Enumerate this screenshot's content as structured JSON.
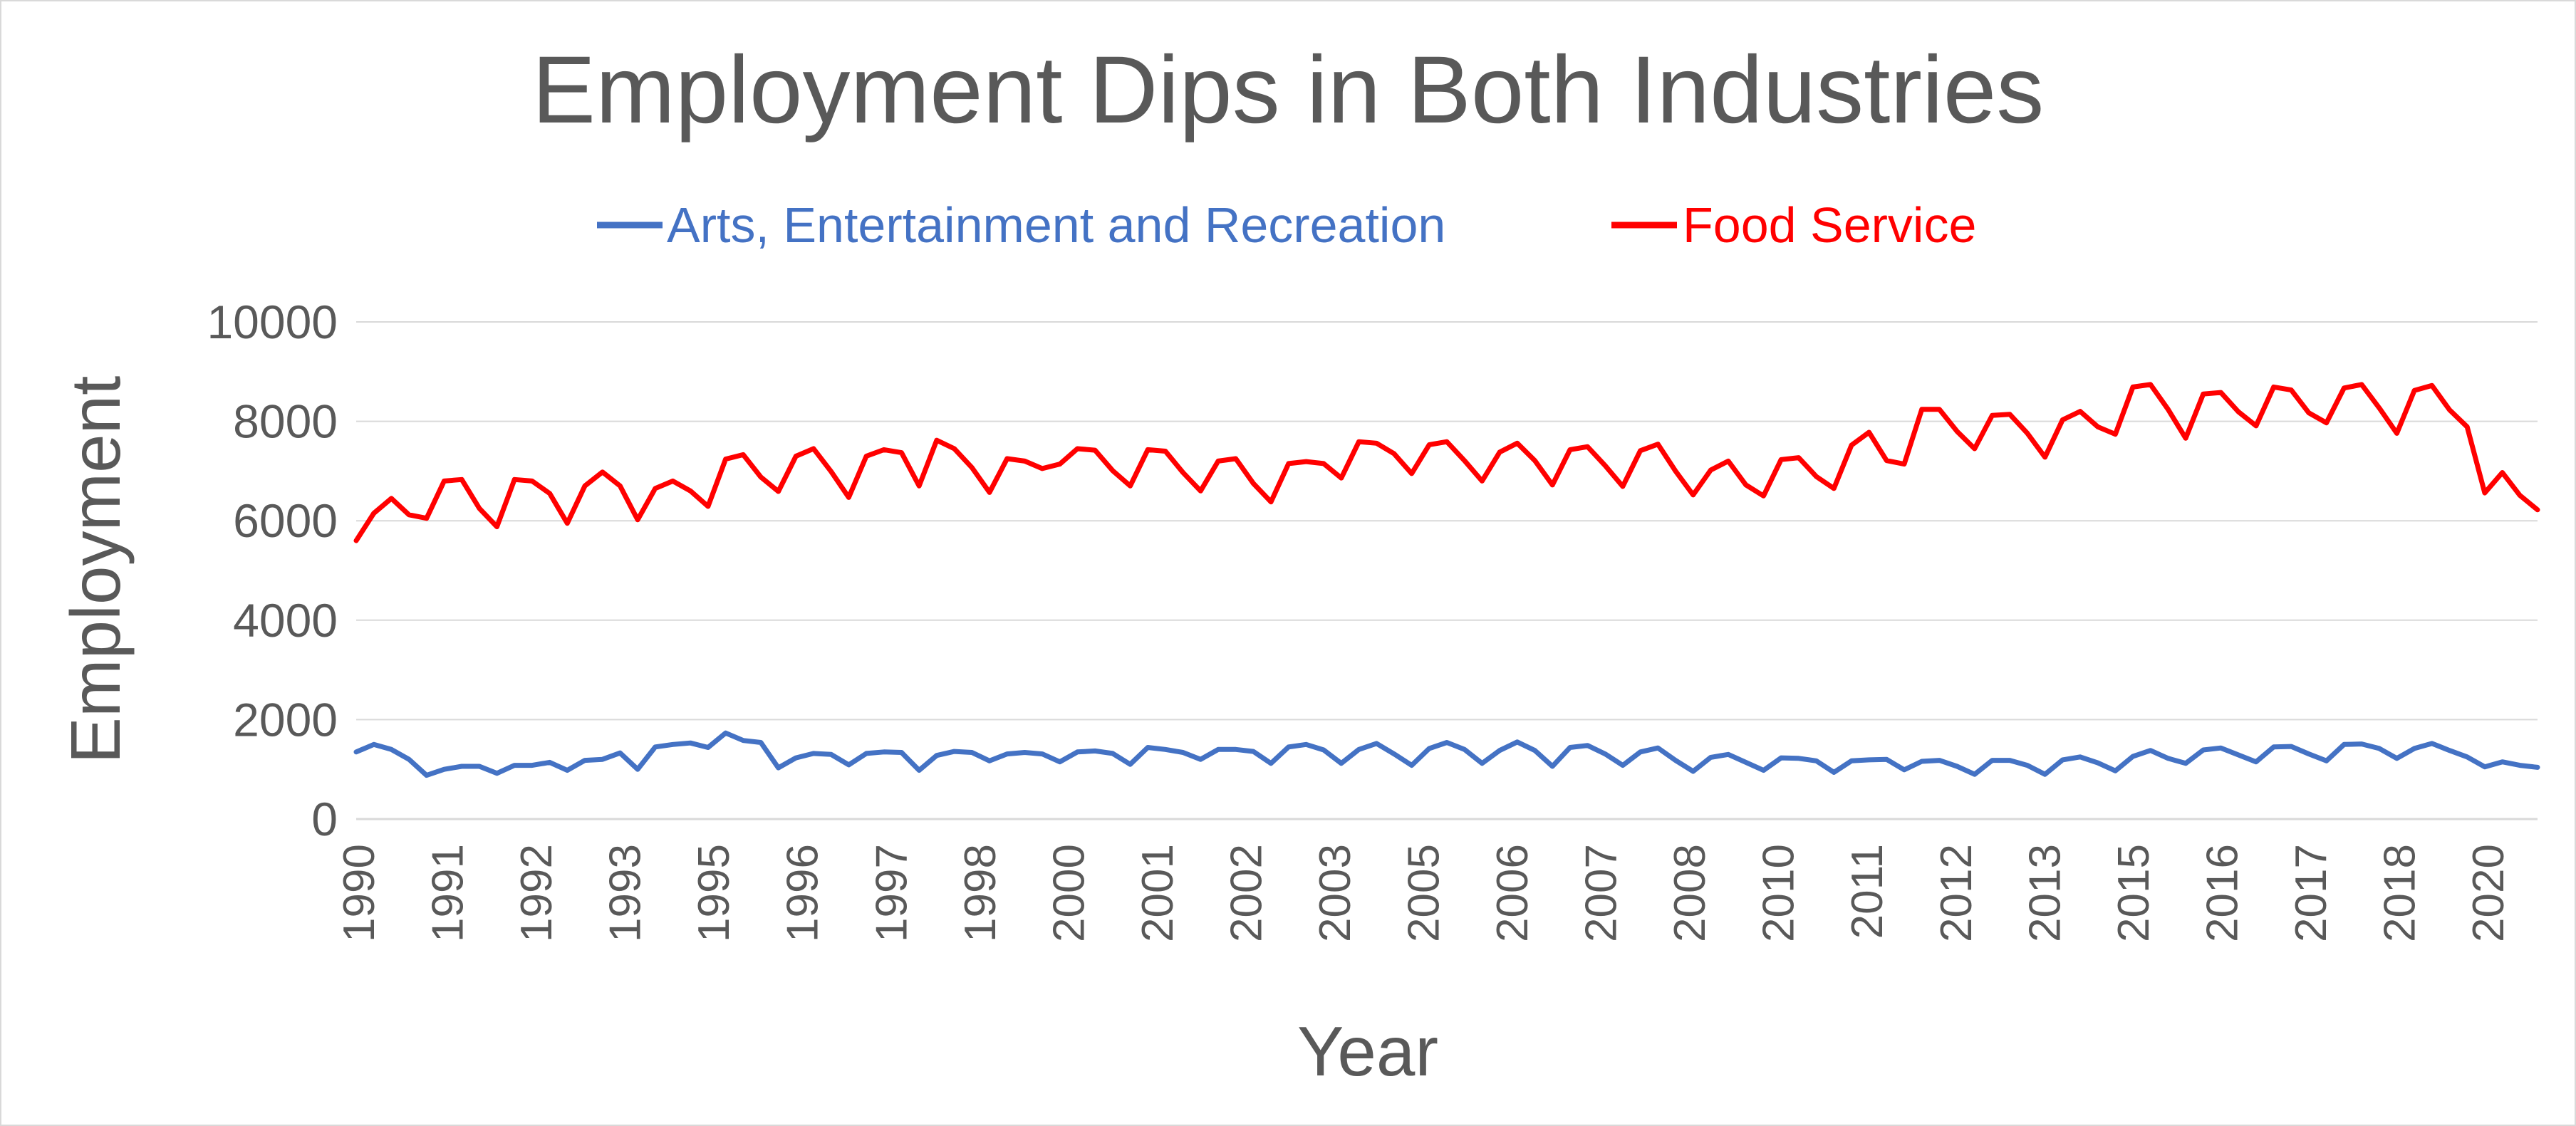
{
  "chart_data": {
    "type": "line",
    "title": "Employment Dips in Both Industries",
    "xlabel": "Year",
    "ylabel": "Employment",
    "ylim": [
      0,
      10000
    ],
    "y_ticks": [
      "0",
      "2000",
      "4000",
      "6000",
      "8000",
      "10000"
    ],
    "x_tick_labels": [
      "1990",
      "1991",
      "1992",
      "1993",
      "1995",
      "1996",
      "1997",
      "1998",
      "2000",
      "2001",
      "2002",
      "2003",
      "2005",
      "2006",
      "2007",
      "2008",
      "2010",
      "2011",
      "2012",
      "2013",
      "2015",
      "2016",
      "2017",
      "2018",
      "2020"
    ],
    "grid": true,
    "legend_position": "top",
    "series": [
      {
        "name": "Arts, Entertainment and Recreation",
        "color": "#4472C4",
        "values": [
          1350,
          1500,
          1400,
          1200,
          880,
          1000,
          1060,
          1060,
          920,
          1080,
          1080,
          1140,
          980,
          1180,
          1200,
          1330,
          1000,
          1450,
          1500,
          1530,
          1440,
          1730,
          1580,
          1540,
          1030,
          1230,
          1320,
          1300,
          1090,
          1320,
          1350,
          1340,
          980,
          1280,
          1360,
          1340,
          1170,
          1310,
          1340,
          1310,
          1150,
          1350,
          1370,
          1320,
          1100,
          1440,
          1400,
          1340,
          1200,
          1400,
          1400,
          1360,
          1120,
          1450,
          1500,
          1390,
          1120,
          1400,
          1520,
          1310,
          1080,
          1420,
          1540,
          1400,
          1120,
          1380,
          1550,
          1380,
          1060,
          1440,
          1480,
          1310,
          1080,
          1350,
          1430,
          1180,
          960,
          1240,
          1300,
          1140,
          980,
          1230,
          1220,
          1170,
          940,
          1170,
          1190,
          1200,
          990,
          1160,
          1180,
          1060,
          900,
          1180,
          1180,
          1080,
          900,
          1190,
          1250,
          1130,
          970,
          1260,
          1380,
          1220,
          1120,
          1390,
          1430,
          1290,
          1150,
          1450,
          1460,
          1310,
          1170,
          1500,
          1510,
          1420,
          1220,
          1420,
          1520,
          1380,
          1250,
          1050,
          1150,
          1080,
          1040
        ]
      },
      {
        "name": "Food Service",
        "color": "#FF0000",
        "values": [
          5600,
          6150,
          6450,
          6120,
          6050,
          6800,
          6830,
          6250,
          5880,
          6830,
          6800,
          6550,
          5950,
          6700,
          6980,
          6700,
          6020,
          6650,
          6800,
          6600,
          6290,
          7240,
          7330,
          6880,
          6590,
          7300,
          7450,
          6990,
          6470,
          7300,
          7430,
          7370,
          6700,
          7620,
          7450,
          7070,
          6570,
          7250,
          7200,
          7050,
          7140,
          7450,
          7420,
          7010,
          6700,
          7430,
          7400,
          6970,
          6600,
          7200,
          7250,
          6750,
          6380,
          7150,
          7190,
          7150,
          6860,
          7590,
          7560,
          7350,
          6950,
          7530,
          7590,
          7210,
          6800,
          7380,
          7560,
          7210,
          6720,
          7430,
          7490,
          7110,
          6690,
          7410,
          7540,
          7000,
          6520,
          7020,
          7200,
          6720,
          6500,
          7230,
          7270,
          6890,
          6650,
          7520,
          7780,
          7210,
          7140,
          8240,
          8240,
          7800,
          7450,
          8120,
          8140,
          7760,
          7280,
          8030,
          8200,
          7890,
          7740,
          8690,
          8740,
          8240,
          7660,
          8550,
          8580,
          8190,
          7910,
          8690,
          8630,
          8170,
          7970,
          8670,
          8740,
          8270,
          7760,
          8620,
          8720,
          8230,
          7890,
          6560,
          6970,
          6510,
          6220
        ]
      }
    ]
  }
}
